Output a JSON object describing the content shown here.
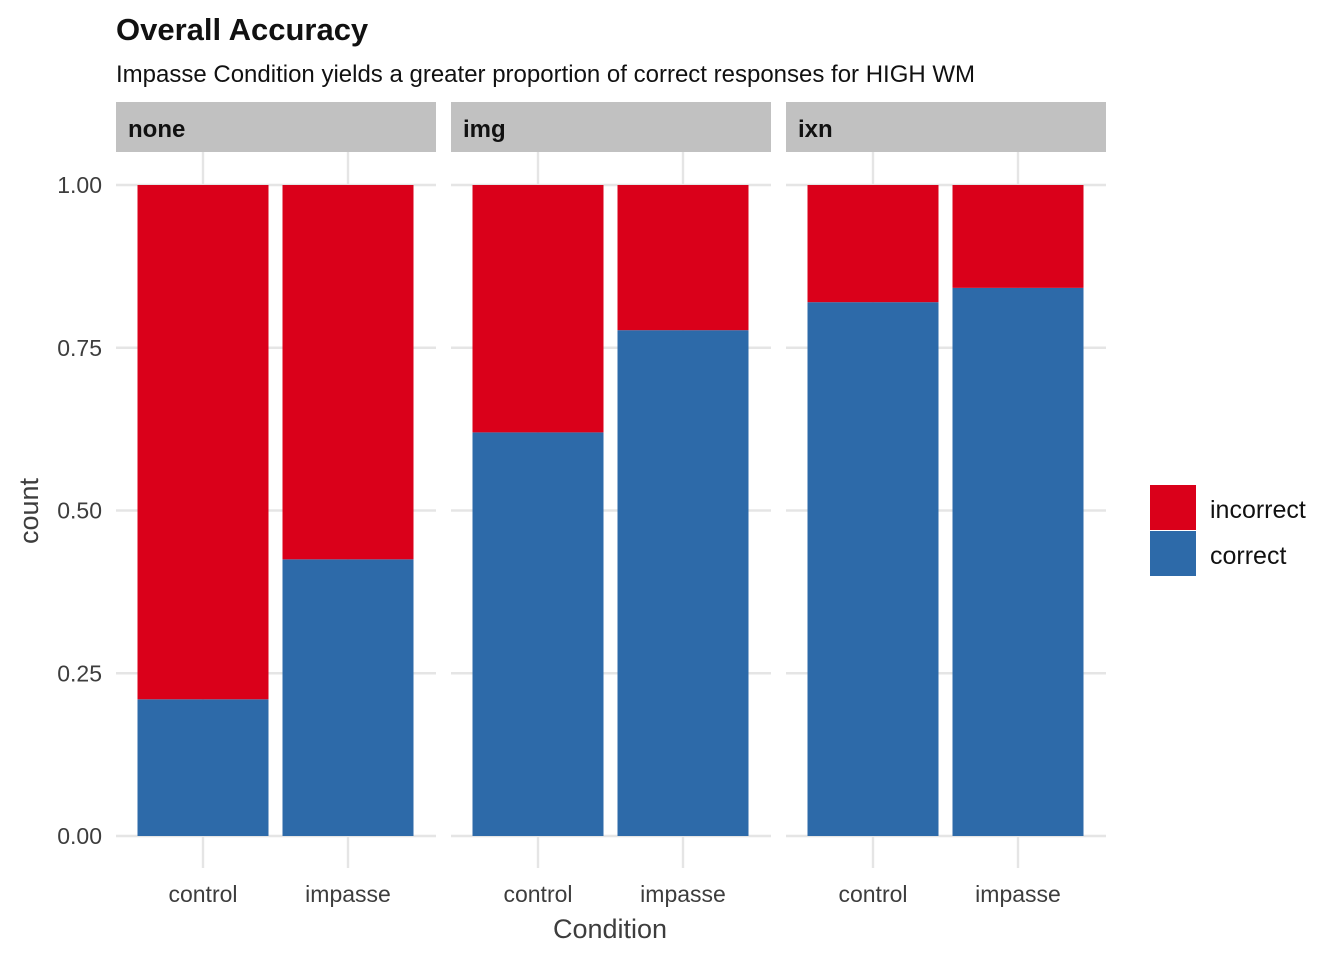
{
  "chart_data": {
    "type": "bar",
    "stacked": true,
    "title": "Overall Accuracy",
    "subtitle": "Impasse Condition yields a greater proportion of correct responses for HIGH WM",
    "xlabel": "Condition",
    "ylabel": "count",
    "ylim": [
      0,
      1
    ],
    "yticks": [
      "0.00",
      "0.25",
      "0.50",
      "0.75",
      "1.00"
    ],
    "ytick_values": [
      0,
      0.25,
      0.5,
      0.75,
      1.0
    ],
    "categories": [
      "control",
      "impasse"
    ],
    "legend_position": "right",
    "grid": true,
    "colors": {
      "incorrect": "#da001a",
      "correct": "#2d6aa9",
      "strip": "#c1c1c1",
      "grid": "#e5e5e5"
    },
    "legend": [
      {
        "key": "incorrect",
        "label": "incorrect"
      },
      {
        "key": "correct",
        "label": "correct"
      }
    ],
    "panels": [
      {
        "facet": "none",
        "series": [
          {
            "name": "correct",
            "values": [
              0.21,
              0.425
            ]
          },
          {
            "name": "incorrect",
            "values": [
              0.79,
              0.575
            ]
          }
        ]
      },
      {
        "facet": "img",
        "series": [
          {
            "name": "correct",
            "values": [
              0.62,
              0.777
            ]
          },
          {
            "name": "incorrect",
            "values": [
              0.38,
              0.223
            ]
          }
        ]
      },
      {
        "facet": "ixn",
        "series": [
          {
            "name": "correct",
            "values": [
              0.82,
              0.842
            ]
          },
          {
            "name": "incorrect",
            "values": [
              0.18,
              0.158
            ]
          }
        ]
      }
    ]
  }
}
